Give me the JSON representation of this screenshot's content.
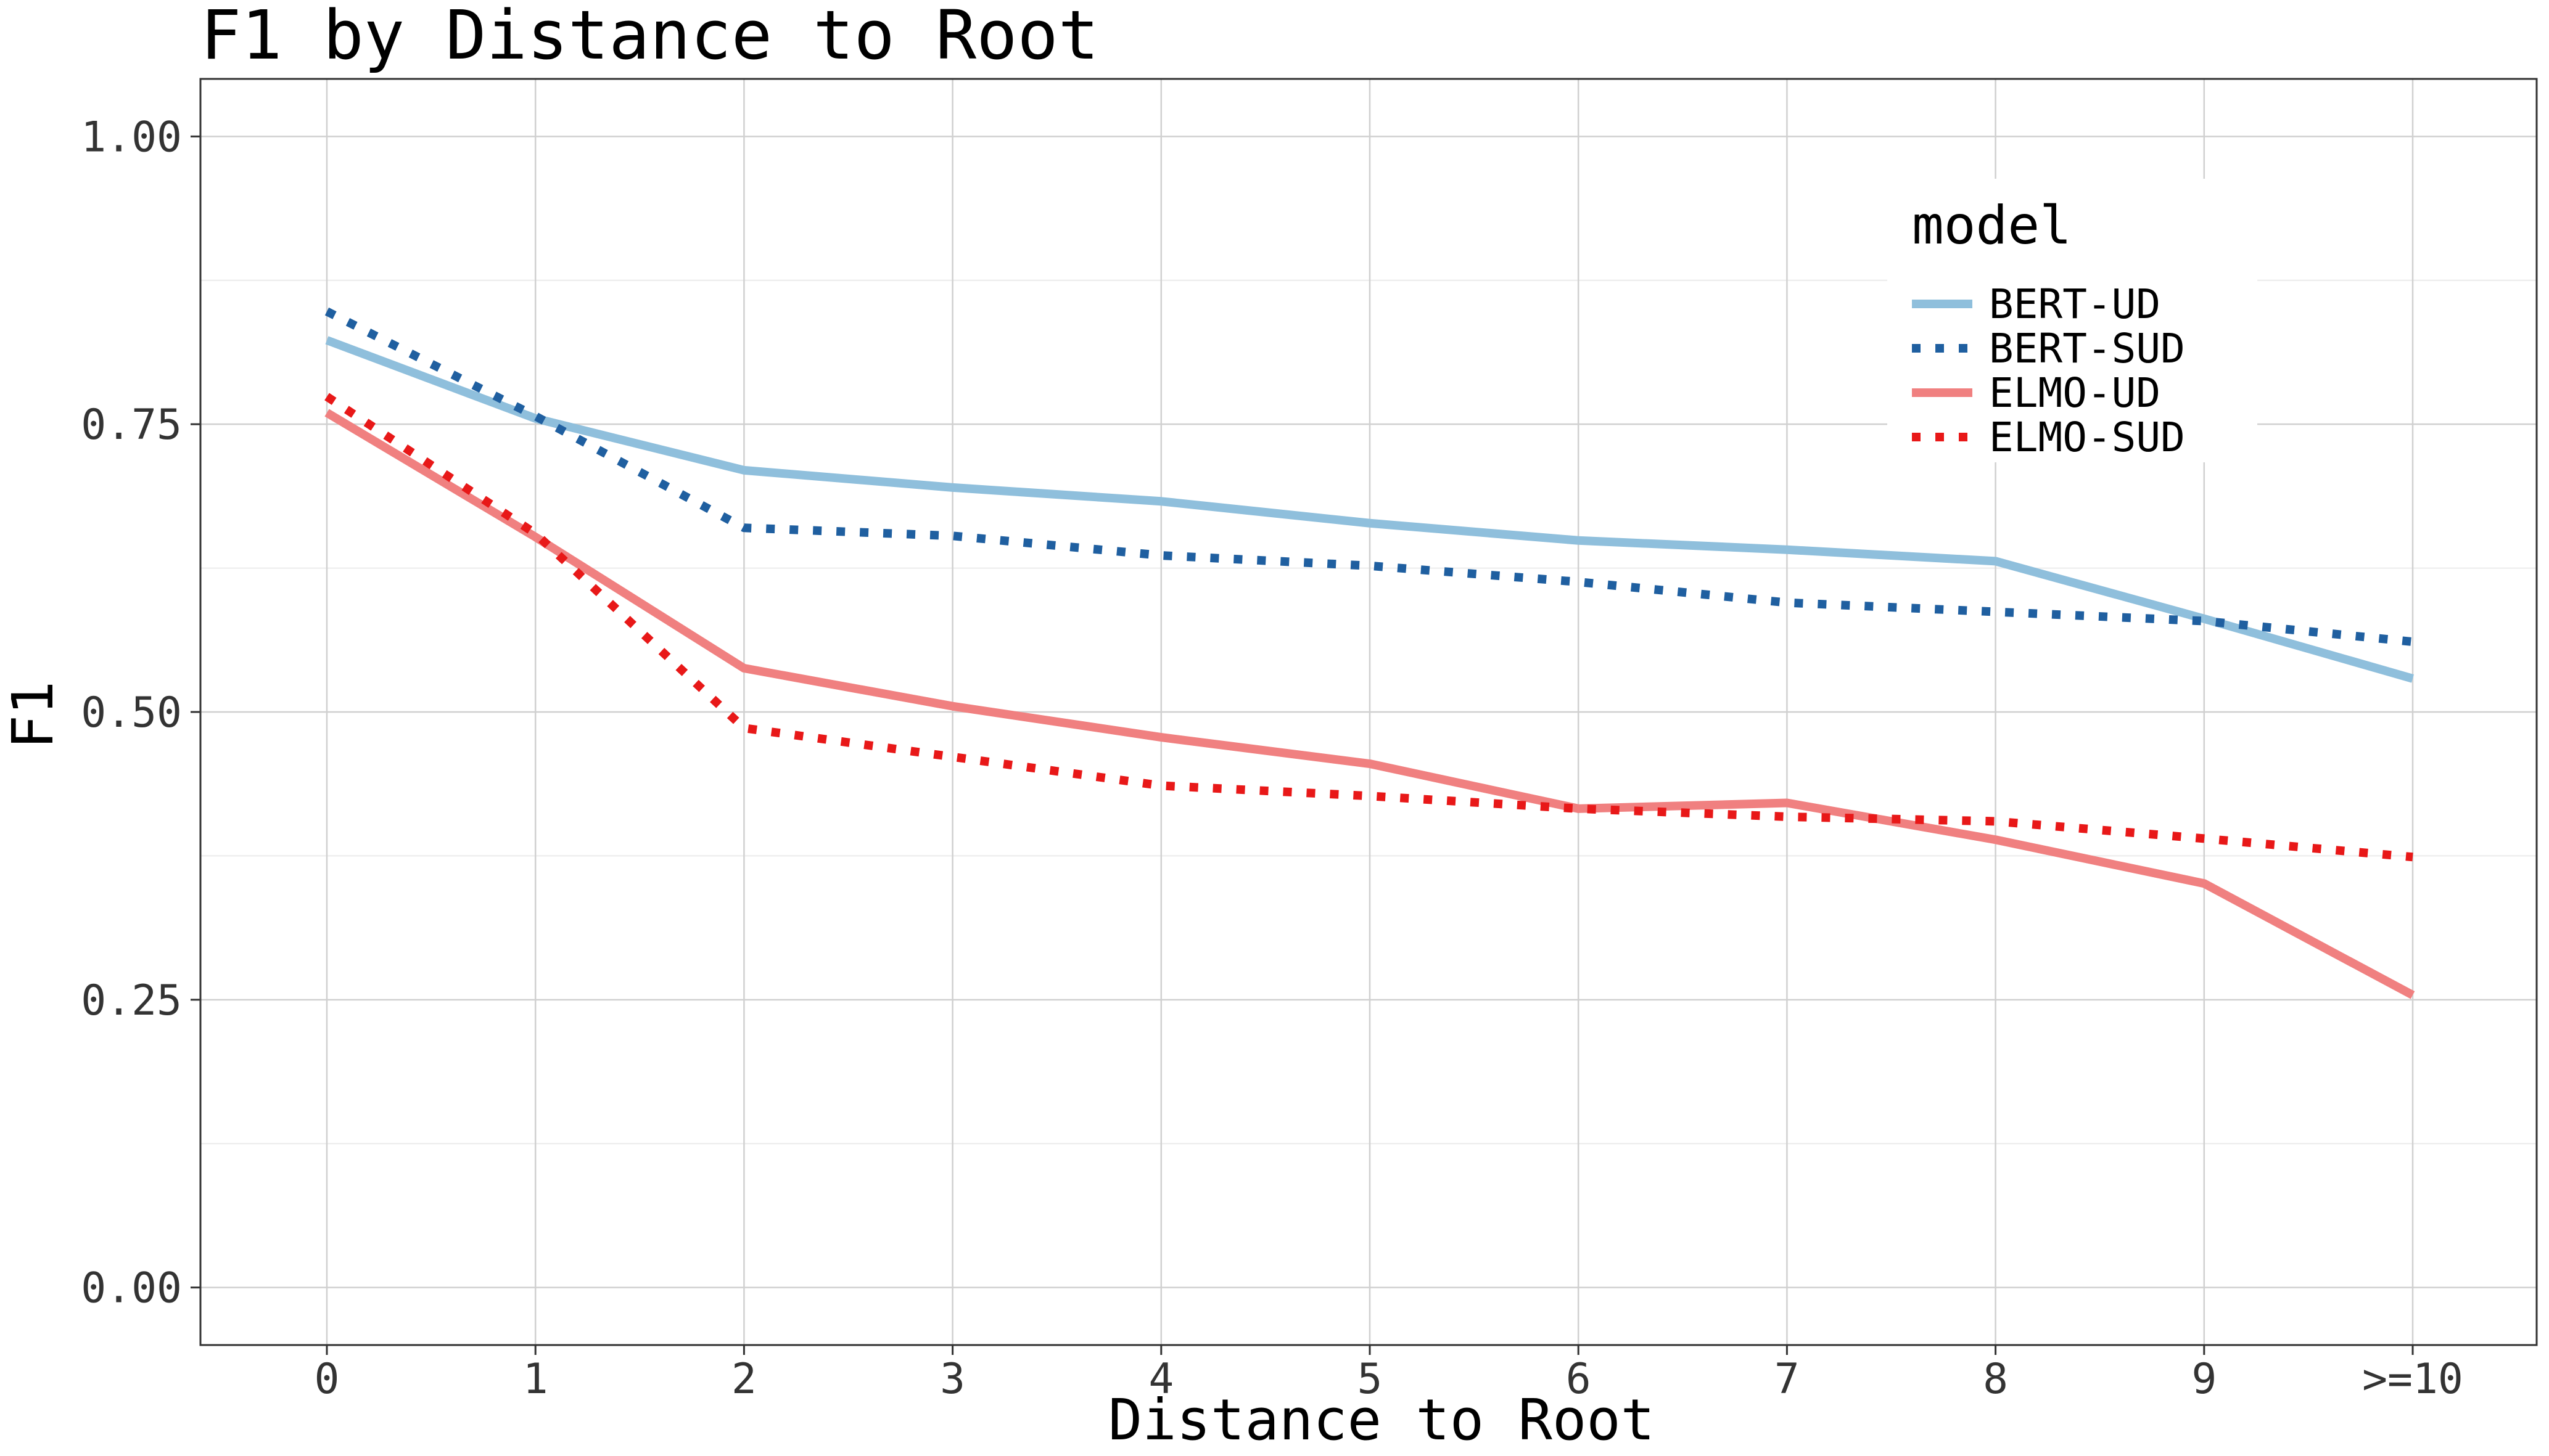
{
  "chart_data": {
    "type": "line",
    "title": "F1 by Distance to Root",
    "xlabel": "Distance to Root",
    "ylabel": "F1",
    "categories": [
      "0",
      "1",
      "2",
      "3",
      "4",
      "5",
      "6",
      "7",
      "8",
      "9",
      ">=10"
    ],
    "ylim": [
      -0.05,
      1.05
    ],
    "yticks": [
      0.0,
      0.25,
      0.5,
      0.75,
      1.0
    ],
    "ytick_labels": [
      "0.00",
      "0.25",
      "0.50",
      "0.75",
      "1.00"
    ],
    "grid": true,
    "legend": {
      "title": "model",
      "placement": "top-right"
    },
    "series": [
      {
        "name": "BERT-UD",
        "color": "#8fbfdc",
        "style": "solid",
        "values": [
          0.823,
          0.755,
          0.71,
          0.695,
          0.683,
          0.664,
          0.649,
          0.641,
          0.631,
          0.581,
          0.529
        ]
      },
      {
        "name": "BERT-SUD",
        "color": "#1f5fa0",
        "style": "dotted",
        "values": [
          0.848,
          0.757,
          0.66,
          0.653,
          0.636,
          0.627,
          0.613,
          0.595,
          0.587,
          0.579,
          0.561
        ]
      },
      {
        "name": "ELMO-UD",
        "color": "#f08080",
        "style": "solid",
        "values": [
          0.76,
          0.652,
          0.538,
          0.505,
          0.478,
          0.455,
          0.416,
          0.421,
          0.389,
          0.351,
          0.254
        ]
      },
      {
        "name": "ELMO-SUD",
        "color": "#e81818",
        "style": "dotted",
        "values": [
          0.774,
          0.655,
          0.486,
          0.461,
          0.436,
          0.427,
          0.416,
          0.409,
          0.405,
          0.39,
          0.374
        ]
      }
    ]
  }
}
